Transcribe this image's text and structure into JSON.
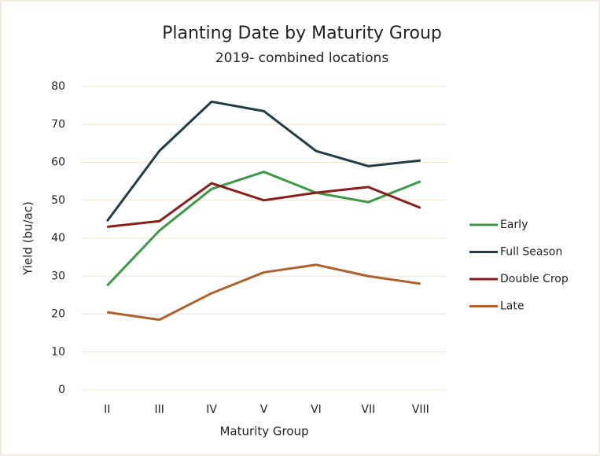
{
  "chart_data": {
    "type": "line",
    "title": "Planting Date by Maturity Group",
    "subtitle": "2019- combined locations",
    "x_label": "Maturity Group",
    "y_label": "Yield (bu/ac)",
    "categories": [
      "II",
      "III",
      "IV",
      "V",
      "VI",
      "VII",
      "VIII"
    ],
    "series": [
      {
        "name": "Early",
        "color": "#3c9a47",
        "values": [
          27.5,
          42,
          53,
          57.5,
          52,
          49.5,
          55
        ]
      },
      {
        "name": "Full Season",
        "color": "#1f3c48",
        "values": [
          44.5,
          63,
          76,
          73.5,
          63,
          59,
          60.5
        ]
      },
      {
        "name": "Double Crop",
        "color": "#8b1d1a",
        "values": [
          43,
          44.5,
          54.5,
          50,
          52,
          53.5,
          48
        ]
      },
      {
        "name": "Late",
        "color": "#b0612c",
        "values": [
          20.5,
          18.5,
          25.5,
          31,
          33,
          30,
          28
        ]
      }
    ],
    "ylim": [
      0,
      80
    ],
    "yticks": [
      0,
      10,
      20,
      30,
      40,
      50,
      60,
      70,
      80
    ],
    "grid": true,
    "legend": "right"
  }
}
